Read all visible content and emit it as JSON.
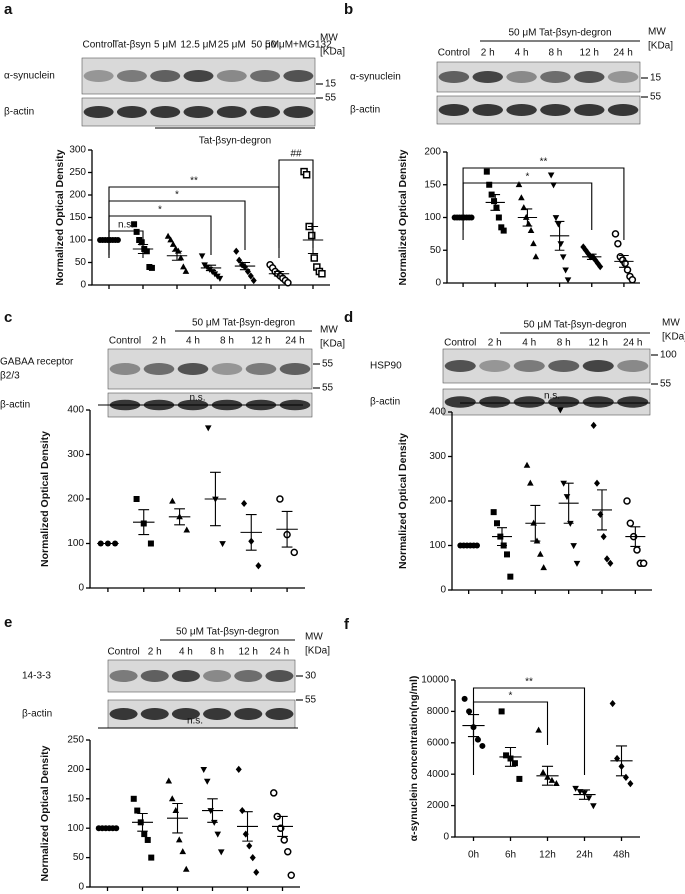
{
  "panels": [
    {
      "label": "a",
      "lanes": [
        "Control",
        "Tat-βsyn",
        "5 μM",
        "12.5 μM",
        "25 μM",
        "50 μM",
        "50 μM+MG132"
      ],
      "mw": [
        "MW",
        "[KDa]"
      ],
      "rows": [
        [
          "α-synuclein"
        ],
        [
          "β-actin"
        ]
      ],
      "markers": [
        "15",
        "55"
      ],
      "footer": "Tat-βsyn-degron"
    },
    {
      "label": "b",
      "header": "50 μM Tat-βsyn-degron",
      "lanes": [
        "Control",
        "2 h",
        "4 h",
        "8 h",
        "12 h",
        "24 h"
      ],
      "mw": [
        "MW",
        "[KDa]"
      ],
      "rows": [
        [
          "α-synuclein"
        ],
        [
          "β-actin"
        ]
      ],
      "markers": [
        "15",
        "55"
      ]
    },
    {
      "label": "c",
      "header": "50 μM Tat-βsyn-degron",
      "lanes": [
        "Control",
        "2 h",
        "4 h",
        "8 h",
        "12 h",
        "24 h"
      ],
      "mw": [
        "MW",
        "[KDa]"
      ],
      "rows": [
        [
          "GABAA receptor",
          "β2/3"
        ],
        [
          "β-actin"
        ]
      ],
      "markers": [
        "55",
        "55"
      ]
    },
    {
      "label": "d",
      "header": "50 μM Tat-βsyn-degron",
      "lanes": [
        "Control",
        "2 h",
        "4 h",
        "8 h",
        "12 h",
        "24 h"
      ],
      "mw": [
        "MW",
        "[KDa]"
      ],
      "rows": [
        [
          "HSP90"
        ],
        [
          "β-actin"
        ]
      ],
      "markers": [
        "100",
        "55"
      ]
    },
    {
      "label": "e",
      "header": "50 μM Tat-βsyn-degron",
      "lanes": [
        "Control",
        "2 h",
        "4 h",
        "8 h",
        "12 h",
        "24 h"
      ],
      "mw": [
        "MW",
        "[KDa]"
      ],
      "rows": [
        [
          "14-3-3"
        ],
        [
          "β-actin"
        ]
      ],
      "markers": [
        "30",
        "55"
      ]
    },
    {
      "label": "f"
    }
  ],
  "chart_data": [
    {
      "type": "dot",
      "ylabel": "Normalized Optical Density",
      "ylim": [
        0,
        300
      ],
      "yticks": [
        0,
        50,
        100,
        150,
        200,
        250,
        300
      ],
      "categories": [
        null,
        null,
        null,
        null,
        null,
        null,
        null
      ],
      "markers": [
        "circle",
        "square",
        "triangle",
        "itriangle",
        "diamond",
        "ocircle",
        "osquare"
      ],
      "color": "#000000",
      "points": [
        [
          100,
          100,
          100,
          100,
          100,
          100,
          100,
          100
        ],
        [
          135,
          118,
          100,
          95,
          80,
          75,
          40,
          38
        ],
        [
          108,
          100,
          90,
          80,
          75,
          60,
          40,
          30
        ],
        [
          65,
          45,
          40,
          35,
          30,
          25,
          20,
          15
        ],
        [
          75,
          55,
          45,
          40,
          30,
          20,
          10
        ],
        [
          45,
          38,
          30,
          25,
          20,
          15,
          10,
          5
        ],
        [
          252,
          245,
          130,
          110,
          60,
          40,
          30,
          25
        ]
      ],
      "means": [
        100,
        80,
        65,
        38,
        42,
        25,
        100
      ],
      "sems": [
        0,
        10,
        10,
        6,
        8,
        5,
        30
      ],
      "annotations": [
        "n.s.",
        "*",
        "*",
        "**",
        "##"
      ]
    },
    {
      "type": "dot",
      "ylabel": "Normalized Optical Density",
      "ylim": [
        0,
        200
      ],
      "yticks": [
        0,
        50,
        100,
        150,
        200
      ],
      "categories": [
        null,
        null,
        null,
        null,
        null,
        null
      ],
      "markers": [
        "circle",
        "square",
        "triangle",
        "itriangle",
        "diamond",
        "ocircle"
      ],
      "color": "#000000",
      "points": [
        [
          100,
          100,
          100,
          100,
          100,
          100,
          100,
          100
        ],
        [
          170,
          150,
          135,
          125,
          115,
          100,
          85,
          80
        ],
        [
          150,
          130,
          115,
          100,
          90,
          80,
          60,
          40
        ],
        [
          165,
          150,
          100,
          90,
          60,
          40,
          20,
          5
        ],
        [
          55,
          50,
          45,
          40,
          40,
          35,
          30,
          25
        ],
        [
          75,
          60,
          40,
          35,
          30,
          20,
          10,
          5
        ]
      ],
      "means": [
        100,
        123,
        100,
        72,
        40,
        33
      ],
      "sems": [
        0,
        12,
        13,
        22,
        4,
        9
      ],
      "annotations": [
        "*",
        "**"
      ]
    },
    {
      "type": "dot",
      "ylabel": "Normalized Optical Density",
      "ylim": [
        0,
        400
      ],
      "yticks": [
        0,
        100,
        200,
        300,
        400
      ],
      "categories": [
        null,
        null,
        null,
        null,
        null,
        null
      ],
      "markers": [
        "circle",
        "square",
        "triangle",
        "itriangle",
        "diamond",
        "ocircle"
      ],
      "color": "#000000",
      "points": [
        [
          100,
          100,
          100
        ],
        [
          200,
          145,
          100
        ],
        [
          195,
          160,
          130
        ],
        [
          360,
          200,
          100
        ],
        [
          190,
          105,
          50
        ],
        [
          200,
          120,
          80
        ]
      ],
      "means": [
        100,
        148,
        160,
        200,
        125,
        132
      ],
      "sems": [
        0,
        28,
        18,
        60,
        40,
        40
      ],
      "annotations": [
        "n.s."
      ]
    },
    {
      "type": "dot",
      "ylabel": "Normalized Optical Density",
      "ylim": [
        0,
        400
      ],
      "yticks": [
        0,
        100,
        200,
        300,
        400
      ],
      "categories": [
        null,
        null,
        null,
        null,
        null,
        null
      ],
      "markers": [
        "circle",
        "square",
        "triangle",
        "itriangle",
        "diamond",
        "ocircle"
      ],
      "color": "#000000",
      "points": [
        [
          100,
          100,
          100,
          100,
          100,
          100
        ],
        [
          175,
          150,
          120,
          100,
          80,
          30
        ],
        [
          280,
          240,
          150,
          110,
          80,
          50
        ],
        [
          405,
          240,
          210,
          150,
          100,
          60
        ],
        [
          370,
          240,
          170,
          120,
          70,
          60
        ],
        [
          200,
          150,
          120,
          90,
          60,
          60
        ]
      ],
      "means": [
        100,
        120,
        150,
        195,
        180,
        120
      ],
      "sems": [
        0,
        20,
        40,
        45,
        45,
        22
      ],
      "annotations": [
        "n.s."
      ]
    },
    {
      "type": "dot",
      "ylabel": "Normalized Optical Density",
      "ylim": [
        0,
        250
      ],
      "yticks": [
        0,
        50,
        100,
        150,
        200,
        250
      ],
      "categories": [
        null,
        null,
        null,
        null,
        null,
        null
      ],
      "markers": [
        "circle",
        "square",
        "triangle",
        "itriangle",
        "diamond",
        "ocircle"
      ],
      "color": "#000000",
      "points": [
        [
          100,
          100,
          100,
          100,
          100,
          100
        ],
        [
          150,
          130,
          110,
          90,
          80,
          50
        ],
        [
          180,
          150,
          130,
          80,
          60,
          30
        ],
        [
          200,
          180,
          130,
          110,
          90,
          60
        ],
        [
          200,
          130,
          90,
          70,
          50,
          25
        ],
        [
          160,
          120,
          100,
          80,
          60,
          20
        ]
      ],
      "means": [
        100,
        110,
        117,
        130,
        103,
        103
      ],
      "sems": [
        0,
        15,
        25,
        20,
        25,
        17
      ],
      "annotations": [
        "n.s."
      ]
    },
    {
      "type": "dot",
      "ylabel": "α-synuclein concentration(ng/ml)",
      "ylim": [
        0,
        10000
      ],
      "yticks": [
        0,
        2000,
        4000,
        6000,
        8000,
        10000
      ],
      "categories": [
        "0h",
        "6h",
        "12h",
        "24h",
        "48h"
      ],
      "markers": [
        "circle",
        "square",
        "triangle",
        "itriangle",
        "diamond"
      ],
      "color": "#000000",
      "points": [
        [
          8800,
          8000,
          7000,
          6200,
          5800
        ],
        [
          8000,
          5200,
          5000,
          4700,
          3700
        ],
        [
          6800,
          4100,
          3800,
          3600,
          3400
        ],
        [
          3100,
          2900,
          2800,
          2500,
          2000
        ],
        [
          8500,
          5000,
          4500,
          3800,
          3400
        ]
      ],
      "means": [
        7100,
        5100,
        3900,
        2700,
        4850
      ],
      "sems": [
        700,
        600,
        600,
        300,
        950
      ],
      "annotations": [
        "*",
        "**"
      ]
    }
  ]
}
